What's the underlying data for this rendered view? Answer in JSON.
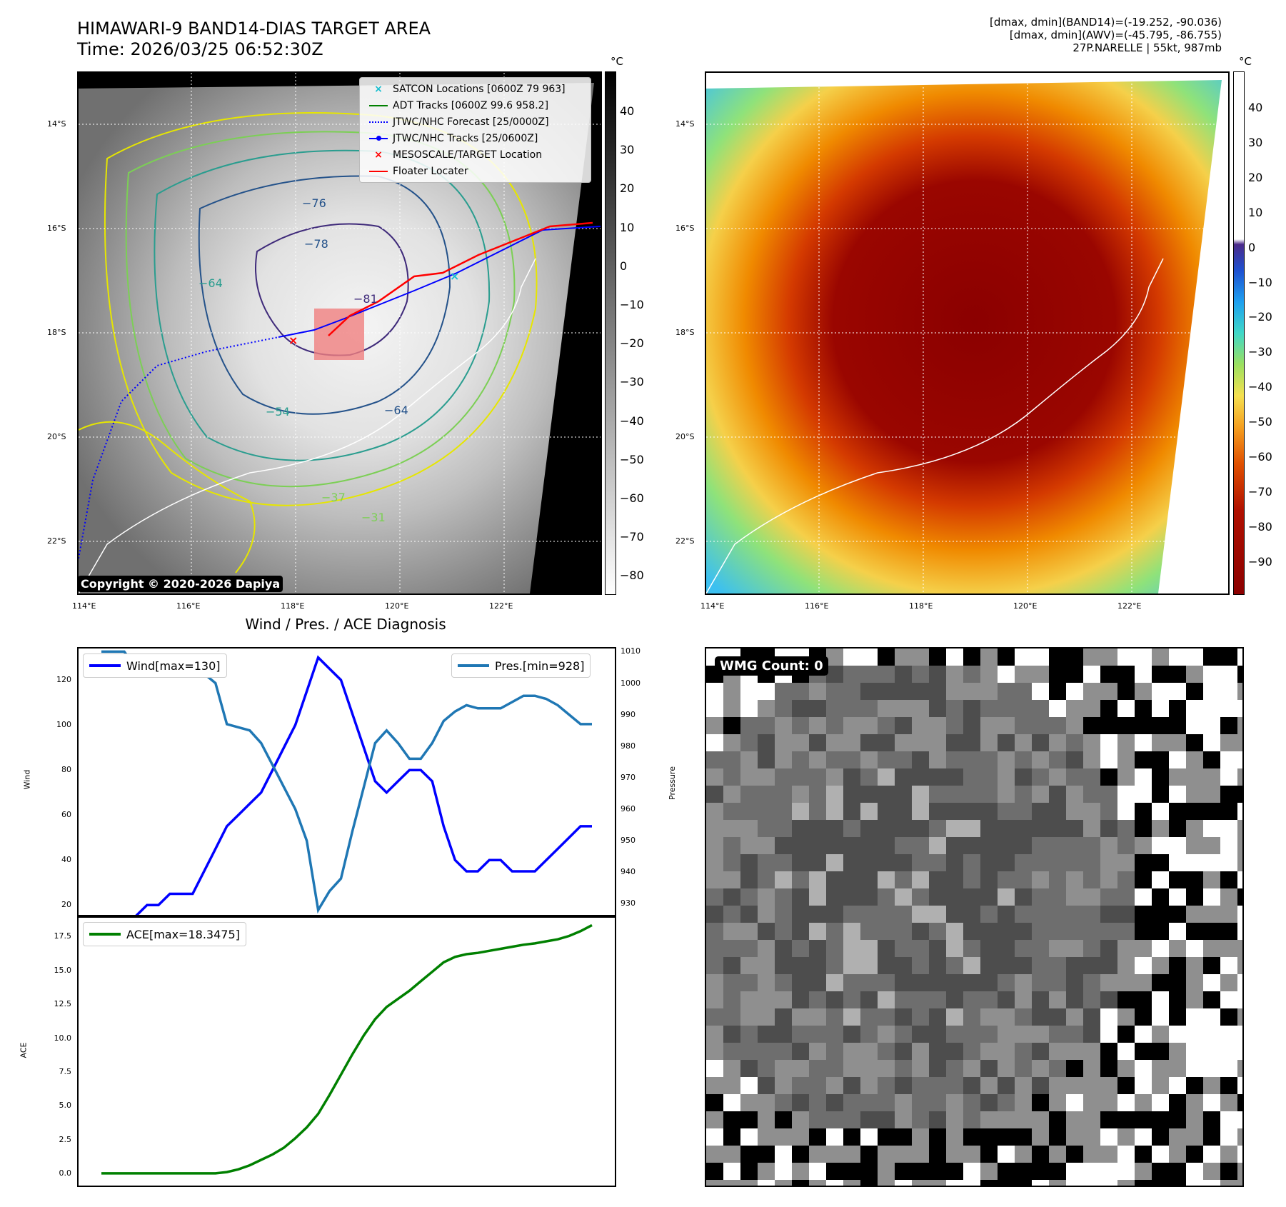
{
  "header": {
    "title": "HIMAWARI-9 BAND14-DIAS TARGET AREA",
    "time": "Time: 2026/03/25 06:52:30Z",
    "stats_band14": "[dmax, dmin](BAND14)=(-19.252, -90.036)",
    "stats_awv": "[dmax, dmin](AWV)=(-45.795, -86.755)",
    "storm": "27P.NARELLE | 55kt, 987mb"
  },
  "map": {
    "lat_labels": [
      "14°S",
      "16°S",
      "18°S",
      "20°S",
      "22°S"
    ],
    "lon_labels": [
      "114°E",
      "116°E",
      "118°E",
      "120°E",
      "122°E"
    ],
    "copyright": "Copyright © 2020-2026 Dapiya",
    "contour_labels": [
      "−76",
      "−78",
      "−81",
      "−64",
      "−64",
      "−54",
      "−37",
      "−31"
    ]
  },
  "legend": {
    "items": [
      {
        "label": "SATCON Locations [0600Z 79 963]",
        "color": "#17becf",
        "marker": "x"
      },
      {
        "label": "ADT Tracks [0600Z 99.6 958.2]",
        "color": "#008000",
        "marker": "line"
      },
      {
        "label": "JTWC/NHC Forecast [25/0000Z]",
        "color": "#0000ff",
        "marker": "dotted"
      },
      {
        "label": "JTWC/NHC Tracks [25/0600Z]",
        "color": "#0000ff",
        "marker": "line-dot"
      },
      {
        "label": "MESOSCALE/TARGET Location",
        "color": "#ff0000",
        "marker": "x"
      },
      {
        "label": "Floater Locater",
        "color": "#ff0000",
        "marker": "line"
      }
    ]
  },
  "colorbar_gray": {
    "unit": "°C",
    "ticks": [
      "40",
      "30",
      "20",
      "10",
      "0",
      "−10",
      "−20",
      "−30",
      "−40",
      "−50",
      "−60",
      "−70",
      "−80"
    ]
  },
  "colorbar_color": {
    "unit": "°C",
    "ticks": [
      "40",
      "30",
      "20",
      "10",
      "0",
      "−10",
      "−20",
      "−30",
      "−40",
      "−50",
      "−60",
      "−70",
      "−80",
      "−90"
    ]
  },
  "colors": {
    "wind": "#0000ff",
    "pressure": "#1f77b4",
    "ace": "#008000"
  },
  "chart_data": [
    {
      "type": "line",
      "title": "Wind / Pres. / ACE Diagnosis",
      "ylabel": "Wind",
      "y2label": "Pressure",
      "ylim": [
        15,
        134
      ],
      "y2lim": [
        926,
        1011
      ],
      "yticks": [
        "20",
        "40",
        "60",
        "80",
        "100",
        "120"
      ],
      "y2ticks": [
        "930",
        "940",
        "950",
        "960",
        "970",
        "980",
        "990",
        "1000",
        "1010"
      ],
      "series": [
        {
          "name": "Wind[max=130]",
          "axis": "left",
          "values": [
            15,
            15,
            15,
            15,
            20,
            20,
            25,
            25,
            25,
            35,
            45,
            55,
            60,
            65,
            70,
            80,
            90,
            100,
            115,
            130,
            125,
            120,
            105,
            90,
            75,
            70,
            75,
            80,
            80,
            75,
            55,
            40,
            35,
            35,
            40,
            40,
            35,
            35,
            35,
            40,
            45,
            50,
            55,
            55
          ]
        },
        {
          "name": "Pres.[min=928]",
          "axis": "right",
          "values": [
            1010,
            1010,
            1010,
            1005,
            1006,
            1005,
            1003,
            1003,
            1003,
            1003,
            1000,
            987,
            986,
            985,
            981,
            974,
            967,
            960,
            950,
            928,
            934,
            938,
            953,
            967,
            981,
            985,
            981,
            976,
            976,
            981,
            988,
            991,
            993,
            992,
            992,
            992,
            994,
            996,
            996,
            995,
            993,
            990,
            987,
            987
          ]
        }
      ]
    },
    {
      "type": "line",
      "ylabel": "ACE",
      "ylim": [
        -0.9,
        19.0
      ],
      "yticks": [
        "0.0",
        "2.5",
        "5.0",
        "7.5",
        "10.0",
        "12.5",
        "15.0",
        "17.5"
      ],
      "series": [
        {
          "name": "ACE[max=18.3475]",
          "values": [
            0,
            0,
            0,
            0,
            0,
            0,
            0,
            0,
            0,
            0,
            0,
            0.1,
            0.3,
            0.6,
            1.0,
            1.4,
            1.9,
            2.6,
            3.4,
            4.4,
            5.8,
            7.3,
            8.8,
            10.2,
            11.4,
            12.3,
            12.9,
            13.5,
            14.2,
            14.9,
            15.6,
            16.0,
            16.2,
            16.3,
            16.45,
            16.6,
            16.75,
            16.9,
            17.0,
            17.15,
            17.3,
            17.55,
            17.9,
            18.3475
          ]
        }
      ]
    }
  ],
  "wmg": {
    "label": "WMG Count: 0"
  }
}
